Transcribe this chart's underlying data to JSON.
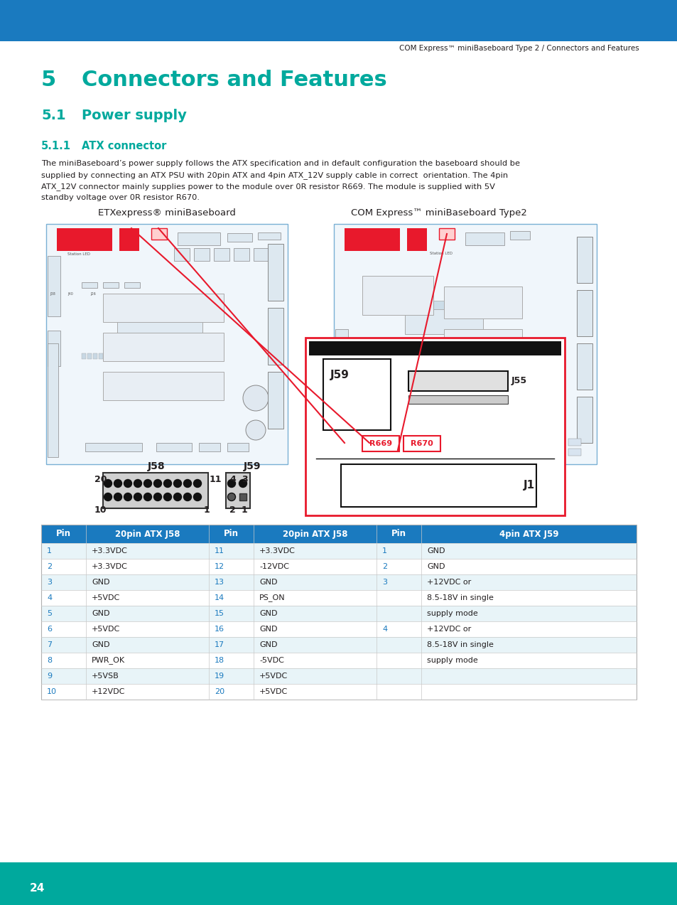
{
  "header_color": "#1a7abf",
  "teal_color": "#00a99d",
  "red_color": "#e8192c",
  "black_color": "#231f20",
  "white": "#ffffff",
  "header_text": "COM Express™ miniBaseboard Type 2 / Connectors and Features",
  "chapter_num": "5",
  "chapter_title": "Connectors and Features",
  "section_num": "5.1",
  "section_title": "Power supply",
  "subsection_num": "5.1.1",
  "subsection_title": "ATX connector",
  "body_text_line1": "The miniBaseboard’s power supply follows the ATX specification and in default configuration the baseboard should be",
  "body_text_line2": "supplied by connecting an ATX PSU with 20pin ATX and 4pin ATX_12V supply cable in correct  orientation. The 4pin",
  "body_text_line3": "ATX_12V connector mainly supplies power to the module over 0R resistor R669. The module is supplied with 5V",
  "body_text_line4": "standby voltage over 0R resistor R670.",
  "diagram_label_left": "ETXexpress® miniBaseboard",
  "diagram_label_right": "COM Express™ miniBaseboard Type2",
  "connector_label_j58": "J58",
  "connector_label_j59": "J59",
  "r669_label": "R669",
  "r670_label": "R670",
  "j55_label": "J55",
  "j59_label2": "J59",
  "j1_label": "J1",
  "page_number": "24",
  "table_header_bg": "#1a7abf",
  "table_row_teal_text": "#1a7abf",
  "table_odd_bg": "#e8f4f8",
  "table_even_bg": "#ffffff",
  "table_col1_header": "Pin",
  "table_col2_header": "20pin ATX J58",
  "table_col3_header": "Pin",
  "table_col4_header": "20pin ATX J58",
  "table_col5_header": "Pin",
  "table_col6_header": "4pin ATX J59",
  "table_rows": [
    [
      "1",
      "+3.3VDC",
      "11",
      "+3.3VDC",
      "1",
      "GND"
    ],
    [
      "2",
      "+3.3VDC",
      "12",
      "-12VDC",
      "2",
      "GND"
    ],
    [
      "3",
      "GND",
      "13",
      "GND",
      "3",
      "+12VDC or"
    ],
    [
      "4",
      "+5VDC",
      "14",
      "PS_ON",
      "",
      "8.5-18V in single"
    ],
    [
      "5",
      "GND",
      "15",
      "GND",
      "",
      "supply mode"
    ],
    [
      "6",
      "+5VDC",
      "16",
      "GND",
      "4",
      "+12VDC or"
    ],
    [
      "7",
      "GND",
      "17",
      "GND",
      "",
      "8.5-18V in single"
    ],
    [
      "8",
      "PWR_OK",
      "18",
      "-5VDC",
      "",
      "supply mode"
    ],
    [
      "9",
      "+5VSB",
      "19",
      "+5VDC",
      "",
      ""
    ],
    [
      "10",
      "+12VDC",
      "20",
      "+5VDC",
      "",
      ""
    ]
  ]
}
